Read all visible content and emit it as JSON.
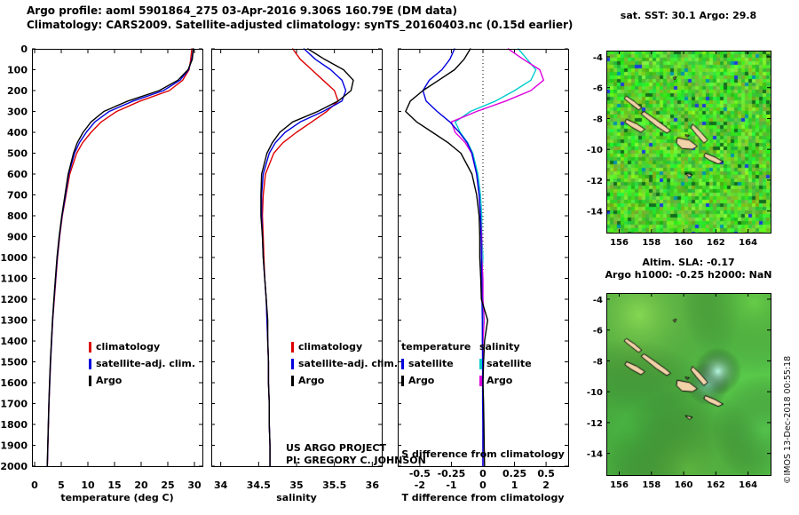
{
  "header": {
    "line1": "Argo profile: aoml 5901864_275 03-Apr-2016 9.306S 160.79E (DM data)",
    "line2": "Climatology: CARS2009. Satellite-adjusted climatology: synTS_20160403.nc (0.15d earlier)"
  },
  "watermark": "©IMOS 13-Dec-2018 00:55:18",
  "notes": {
    "line1": "US ARGO PROJECT",
    "line2": "PI: GREGORY C. JOHNSON"
  },
  "panels": {
    "depth_ticks": [
      0,
      100,
      200,
      300,
      400,
      500,
      600,
      700,
      800,
      900,
      1000,
      1100,
      1200,
      1300,
      1400,
      1500,
      1600,
      1700,
      1800,
      1900,
      2000
    ],
    "ylim": [
      0,
      2000
    ],
    "temperature": {
      "xlabel": "temperature (deg C)",
      "xlim": [
        -0.5,
        31.5
      ],
      "xticks": [
        0,
        5,
        10,
        15,
        20,
        25,
        30
      ],
      "legend": [
        {
          "label": "climatology",
          "color": "#dd0000"
        },
        {
          "label": "satellite-adj. clim.",
          "color": "#0000dd"
        },
        {
          "label": "Argo",
          "color": "#000000"
        }
      ]
    },
    "salinity": {
      "xlabel": "salinity",
      "xlim": [
        33.875,
        36.125
      ],
      "xticks": [
        34,
        34.5,
        35,
        35.5,
        36
      ],
      "xtick_labels": [
        "34",
        "34.5",
        "35",
        "35.5",
        "36"
      ],
      "legend": [
        {
          "label": "climatology",
          "color": "#dd0000"
        },
        {
          "label": "satellite-adj. clim.",
          "color": "#0000dd"
        },
        {
          "label": "Argo",
          "color": "#000000"
        }
      ]
    },
    "difference": {
      "xlabel_T": "T difference from climatology",
      "xlabel_S": "S difference from climatology",
      "xlim": [
        -2.7,
        2.7
      ],
      "xlim_S": [
        -0.675,
        0.675
      ],
      "xticks": [
        -2,
        -1,
        0,
        1,
        2
      ],
      "xticks_S": [
        "-0.5",
        "-0.25",
        "0",
        "0.25",
        "0.5"
      ],
      "legend_temperature_header": "temperature",
      "legend_salinity_header": "salinity",
      "legend_temperature": [
        {
          "label": "satellite",
          "color": "#0000dd"
        },
        {
          "label": "Argo",
          "color": "#000000"
        }
      ],
      "legend_salinity": [
        {
          "label": "satellite",
          "color": "#00cccc"
        },
        {
          "label": "Argo",
          "color": "#dd00dd"
        }
      ]
    }
  },
  "chart_data": [
    {
      "type": "line",
      "panel": "temperature",
      "xlabel": "temperature (deg C)",
      "ylabel": "depth (m), 0 at top",
      "xlim": [
        -0.5,
        31.5
      ],
      "ylim": [
        0,
        2000
      ],
      "depth": [
        0,
        50,
        100,
        150,
        200,
        250,
        300,
        350,
        400,
        450,
        500,
        600,
        700,
        800,
        900,
        1000,
        1100,
        1200,
        1300,
        1400,
        1500,
        1600,
        1700,
        1800,
        1900,
        2000
      ],
      "series": [
        {
          "name": "climatology",
          "color": "#dd0000",
          "values": [
            29.5,
            29.3,
            29.0,
            27.8,
            25.3,
            19.8,
            15.4,
            12.5,
            10.6,
            9.0,
            7.9,
            6.6,
            5.9,
            5.2,
            4.7,
            4.3,
            4.0,
            3.7,
            3.4,
            3.2,
            3.0,
            2.85,
            2.7,
            2.6,
            2.5,
            2.4
          ]
        },
        {
          "name": "satellite-adj. clim.",
          "color": "#0000dd",
          "values": [
            29.8,
            29.5,
            28.9,
            27.3,
            24.2,
            18.5,
            14.0,
            11.3,
            9.7,
            8.4,
            7.5,
            6.4,
            5.8,
            5.15,
            4.65,
            4.25,
            3.95,
            3.65,
            3.38,
            3.18,
            2.98,
            2.83,
            2.68,
            2.58,
            2.48,
            2.38
          ]
        },
        {
          "name": "Argo",
          "color": "#000000",
          "values": [
            29.8,
            29.6,
            28.8,
            26.9,
            23.4,
            17.5,
            13.0,
            10.6,
            9.1,
            8.0,
            7.3,
            6.3,
            5.7,
            5.1,
            4.6,
            4.2,
            3.9,
            3.62,
            3.35,
            3.15,
            2.95,
            2.8,
            2.66,
            2.56,
            2.46,
            2.36
          ]
        }
      ]
    },
    {
      "type": "line",
      "panel": "salinity",
      "xlabel": "salinity",
      "ylabel": "depth (m), 0 at top",
      "xlim": [
        33.875,
        36.125
      ],
      "ylim": [
        0,
        2000
      ],
      "depth": [
        0,
        50,
        100,
        150,
        200,
        250,
        300,
        350,
        400,
        450,
        500,
        600,
        700,
        800,
        900,
        1000,
        1100,
        1200,
        1300,
        1400,
        1500,
        1600,
        1700,
        1800,
        1900,
        2000
      ],
      "series": [
        {
          "name": "climatology",
          "color": "#dd0000",
          "values": [
            34.95,
            35.05,
            35.2,
            35.35,
            35.5,
            35.55,
            35.4,
            35.2,
            35.0,
            34.82,
            34.7,
            34.59,
            34.56,
            34.55,
            34.56,
            34.57,
            34.58,
            34.6,
            34.61,
            34.62,
            34.63,
            34.63,
            34.64,
            34.64,
            34.65,
            34.65
          ]
        },
        {
          "name": "satellite-adj. clim.",
          "color": "#0000dd",
          "values": [
            35.1,
            35.25,
            35.45,
            35.6,
            35.65,
            35.6,
            35.35,
            35.05,
            34.85,
            34.72,
            34.64,
            34.56,
            34.54,
            34.54,
            34.55,
            34.56,
            34.58,
            34.6,
            34.61,
            34.62,
            34.63,
            34.63,
            34.64,
            34.64,
            34.65,
            34.65
          ]
        },
        {
          "name": "Argo",
          "color": "#000000",
          "values": [
            35.15,
            35.37,
            35.62,
            35.75,
            35.72,
            35.55,
            35.28,
            34.95,
            34.78,
            34.68,
            34.61,
            34.54,
            34.53,
            34.53,
            34.55,
            34.56,
            34.58,
            34.6,
            34.62,
            34.62,
            34.63,
            34.63,
            34.64,
            34.64,
            34.65,
            34.65
          ]
        }
      ]
    },
    {
      "type": "line",
      "panel": "difference",
      "xlabel": "T difference from climatology",
      "xlabel_top": "S difference from climatology",
      "ylabel": "depth (m), 0 at top",
      "xlim": [
        -2.7,
        2.7
      ],
      "xlim_S": [
        -0.675,
        0.675
      ],
      "ylim": [
        0,
        2000
      ],
      "depth": [
        0,
        50,
        100,
        150,
        200,
        250,
        300,
        350,
        400,
        450,
        500,
        600,
        700,
        800,
        900,
        1000,
        1100,
        1200,
        1300,
        1400,
        1500,
        1600,
        1700,
        1800,
        1900,
        2000
      ],
      "series": [
        {
          "name": "salinity satellite",
          "axis": "S",
          "color": "#00cccc",
          "values": [
            0.28,
            0.35,
            0.42,
            0.38,
            0.25,
            0.1,
            -0.1,
            -0.22,
            -0.18,
            -0.12,
            -0.08,
            -0.04,
            -0.02,
            -0.01,
            -0.01,
            0,
            -0.01,
            0,
            0,
            0,
            0,
            0,
            0,
            0,
            0,
            0
          ]
        },
        {
          "name": "salinity Argo",
          "axis": "S",
          "color": "#dd00dd",
          "values": [
            0.2,
            0.32,
            0.45,
            0.48,
            0.38,
            0.18,
            -0.05,
            -0.25,
            -0.22,
            -0.14,
            -0.09,
            -0.05,
            -0.03,
            -0.02,
            -0.01,
            -0.01,
            0,
            0,
            0.01,
            0,
            0,
            0,
            0,
            0,
            0,
            0
          ]
        },
        {
          "name": "temperature satellite",
          "axis": "T",
          "color": "#0000dd",
          "values": [
            -0.9,
            -1.05,
            -1.3,
            -1.7,
            -1.9,
            -1.8,
            -1.45,
            -1.05,
            -0.75,
            -0.5,
            -0.35,
            -0.2,
            -0.12,
            -0.08,
            -0.06,
            -0.05,
            -0.04,
            -0.03,
            -0.02,
            -0.02,
            -0.01,
            -0.01,
            -0.01,
            0,
            0,
            0
          ]
        },
        {
          "name": "temperature Argo",
          "axis": "T",
          "color": "#000000",
          "values": [
            -0.4,
            -0.6,
            -0.9,
            -1.4,
            -1.9,
            -2.3,
            -2.45,
            -2.1,
            -1.6,
            -1.1,
            -0.7,
            -0.35,
            -0.2,
            -0.12,
            -0.1,
            -0.1,
            -0.07,
            -0.05,
            0.15,
            0.05,
            0.02,
            0,
            0.02,
            0.03,
            0.04,
            0.05
          ]
        }
      ]
    }
  ],
  "maps": {
    "island_fill": "#f2d2a8",
    "sst": {
      "title": "sat. SST: 30.1 Argo: 29.8",
      "lon_range": [
        155.2,
        165.4
      ],
      "lat_range": [
        -3.6,
        -15.4
      ],
      "xticks": [
        156,
        158,
        160,
        162,
        164
      ],
      "yticks": [
        -4,
        -6,
        -8,
        -10,
        -12,
        -14
      ],
      "style": "noisy"
    },
    "sla": {
      "title1": "Altim. SLA: -0.17",
      "title2": "Argo h1000: -0.25 h2000: NaN",
      "lon_range": [
        155.2,
        165.4
      ],
      "lat_range": [
        -3.6,
        -15.4
      ],
      "xticks": [
        156,
        158,
        160,
        162,
        164
      ],
      "yticks": [
        -4,
        -6,
        -8,
        -10,
        -12,
        -14
      ],
      "style": "smooth"
    },
    "islands": [
      [
        [
          156.45,
          -6.55
        ],
        [
          156.95,
          -6.9
        ],
        [
          157.4,
          -7.3
        ],
        [
          157.2,
          -7.45
        ],
        [
          156.7,
          -7.05
        ],
        [
          156.3,
          -6.7
        ]
      ],
      [
        [
          157.55,
          -7.55
        ],
        [
          158.25,
          -8.05
        ],
        [
          158.85,
          -8.5
        ],
        [
          159.2,
          -8.8
        ],
        [
          158.95,
          -8.95
        ],
        [
          158.3,
          -8.5
        ],
        [
          157.65,
          -7.95
        ],
        [
          157.35,
          -7.7
        ]
      ],
      [
        [
          156.45,
          -8.05
        ],
        [
          157.1,
          -8.35
        ],
        [
          157.6,
          -8.7
        ],
        [
          157.35,
          -8.9
        ],
        [
          156.75,
          -8.55
        ],
        [
          156.35,
          -8.25
        ]
      ],
      [
        [
          159.6,
          -9.25
        ],
        [
          160.35,
          -9.4
        ],
        [
          160.85,
          -9.8
        ],
        [
          160.55,
          -10.0
        ],
        [
          159.9,
          -9.95
        ],
        [
          159.55,
          -9.6
        ]
      ],
      [
        [
          160.55,
          -8.35
        ],
        [
          161.05,
          -8.85
        ],
        [
          161.5,
          -9.4
        ],
        [
          161.25,
          -9.6
        ],
        [
          160.8,
          -9.05
        ],
        [
          160.45,
          -8.6
        ]
      ],
      [
        [
          161.35,
          -10.25
        ],
        [
          161.95,
          -10.5
        ],
        [
          162.45,
          -10.8
        ],
        [
          162.15,
          -10.95
        ],
        [
          161.6,
          -10.7
        ],
        [
          161.25,
          -10.45
        ]
      ],
      [
        [
          160.1,
          -11.55
        ],
        [
          160.55,
          -11.65
        ],
        [
          160.35,
          -11.8
        ]
      ],
      [
        [
          159.35,
          -5.35
        ],
        [
          159.55,
          -5.3
        ],
        [
          159.45,
          -5.5
        ]
      ],
      [
        [
          160.1,
          -9.05
        ],
        [
          160.35,
          -9.1
        ],
        [
          160.2,
          -9.2
        ]
      ]
    ]
  }
}
